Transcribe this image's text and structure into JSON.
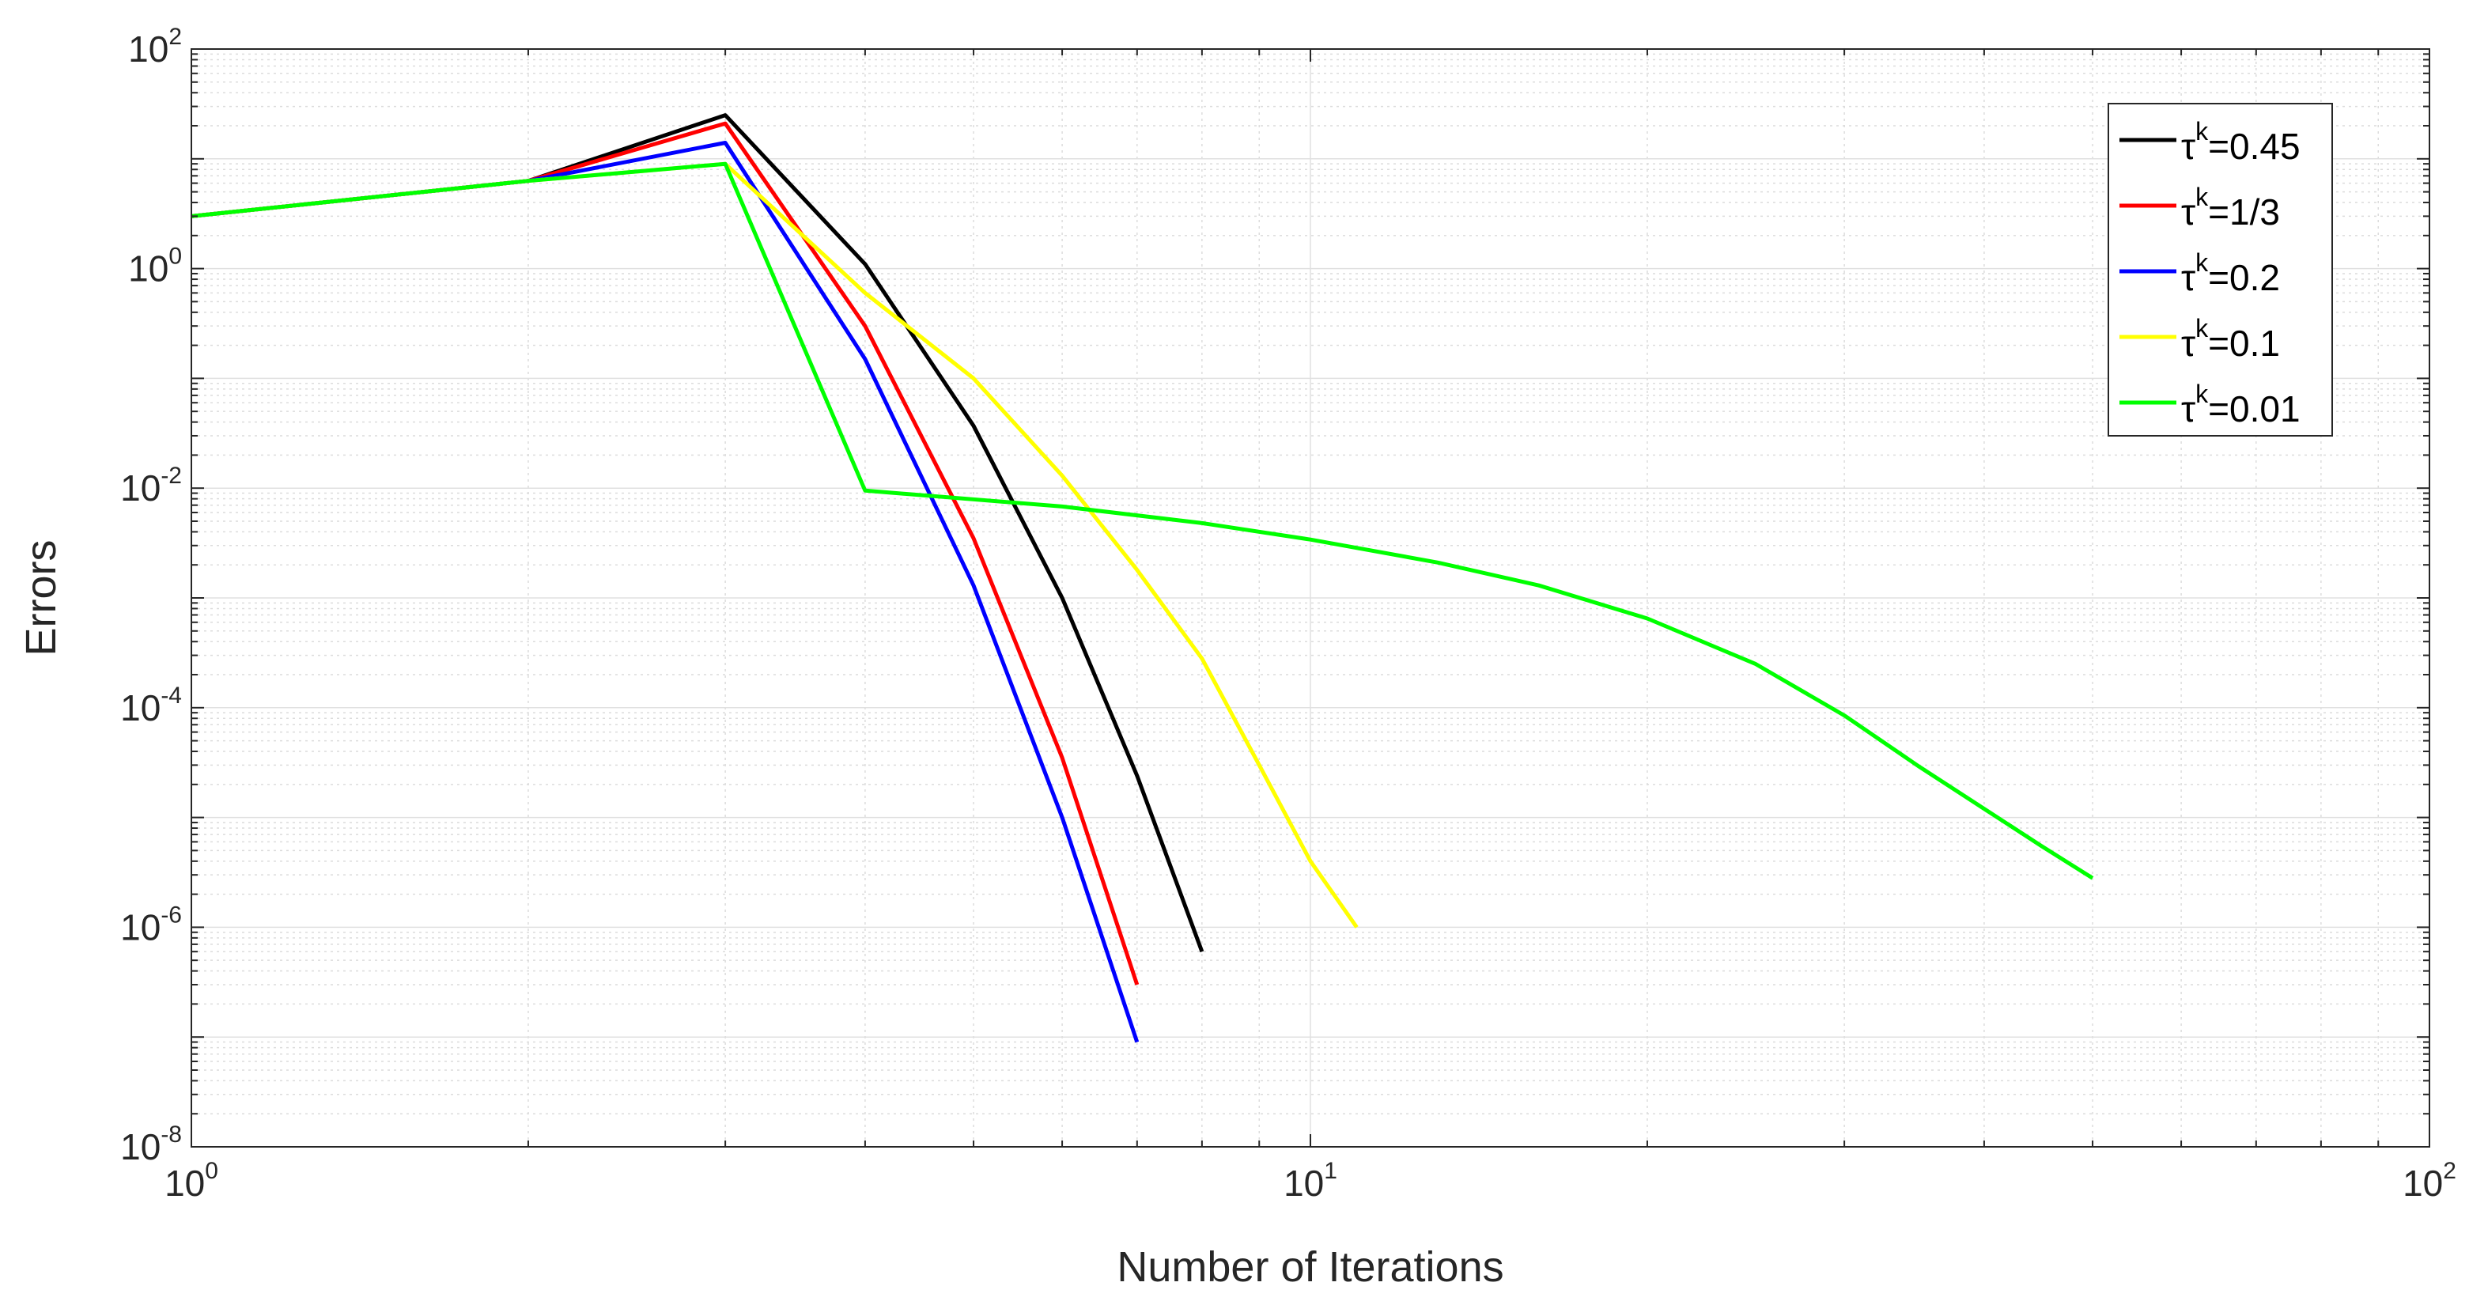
{
  "chart_data": {
    "type": "line",
    "title": "",
    "xlabel": "Number of Iterations",
    "ylabel": "Errors",
    "xscale": "log",
    "yscale": "log",
    "xlim": [
      1,
      100
    ],
    "ylim": [
      1e-08,
      100
    ],
    "grid": true,
    "minor_grid": true,
    "legend_position": "top-right",
    "xticks": [
      {
        "value": 1,
        "base": "10",
        "exp": "0"
      },
      {
        "value": 10,
        "base": "10",
        "exp": "1"
      },
      {
        "value": 100,
        "base": "10",
        "exp": "2"
      }
    ],
    "yticks": [
      {
        "value": 100,
        "base": "10",
        "exp": "2"
      },
      {
        "value": 1,
        "base": "10",
        "exp": "0"
      },
      {
        "value": 0.01,
        "base": "10",
        "exp": "-2"
      },
      {
        "value": 0.0001,
        "base": "10",
        "exp": "-4"
      },
      {
        "value": 1e-06,
        "base": "10",
        "exp": "-6"
      },
      {
        "value": 1e-08,
        "base": "10",
        "exp": "-8"
      }
    ],
    "series": [
      {
        "name": "τ^k=0.45",
        "legend_symbol": "τ",
        "legend_sup": "k",
        "legend_value": "=0.45",
        "color": "#000000",
        "x": [
          1,
          2,
          3,
          4,
          5,
          6,
          7,
          8
        ],
        "y": [
          3,
          6.3,
          25,
          1.1,
          0.037,
          0.001,
          2.4e-05,
          6e-07
        ]
      },
      {
        "name": "τ^k=1/3",
        "legend_symbol": "τ",
        "legend_sup": "k",
        "legend_value": "=1/3",
        "color": "#ff0000",
        "x": [
          1,
          2,
          3,
          4,
          5,
          6,
          7
        ],
        "y": [
          3,
          6.3,
          21,
          0.3,
          0.0035,
          3.5e-05,
          3e-07
        ]
      },
      {
        "name": "τ^k=0.2",
        "legend_symbol": "τ",
        "legend_sup": "k",
        "legend_value": "=0.2",
        "color": "#0000ff",
        "x": [
          1,
          2,
          3,
          4,
          5,
          6,
          7
        ],
        "y": [
          3,
          6.3,
          14,
          0.15,
          0.0013,
          1e-05,
          9e-08
        ]
      },
      {
        "name": "τ^k=0.1",
        "legend_symbol": "τ",
        "legend_sup": "k",
        "legend_value": "=0.1",
        "color": "#ffff00",
        "x": [
          1,
          2,
          3,
          4,
          5,
          6,
          7,
          8,
          9,
          10,
          11
        ],
        "y": [
          3,
          6.3,
          9,
          0.6,
          0.1,
          0.013,
          0.0018,
          0.00028,
          3e-05,
          4e-06,
          1e-06
        ]
      },
      {
        "name": "τ^k=0.01",
        "legend_symbol": "τ",
        "legend_sup": "k",
        "legend_value": "=0.01",
        "color": "#00ff00",
        "x": [
          1,
          2,
          3,
          4,
          6,
          8,
          10,
          13,
          16,
          20,
          25,
          30,
          35,
          40,
          45,
          50
        ],
        "y": [
          3,
          6.3,
          9,
          0.0095,
          0.0068,
          0.0048,
          0.0034,
          0.0021,
          0.0013,
          0.00065,
          0.00025,
          8.5e-05,
          2.9e-05,
          1.2e-05,
          5.5e-06,
          2.8e-06
        ]
      }
    ]
  }
}
